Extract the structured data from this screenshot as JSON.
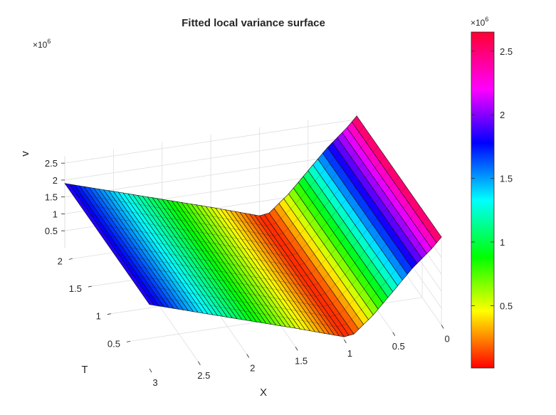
{
  "chart_data": {
    "type": "surface",
    "title": "Fitted local variance surface",
    "xlabel": "X",
    "ylabel": "T",
    "zlabel": "v",
    "xlim": [
      0,
      3
    ],
    "ylim": [
      0,
      2.2
    ],
    "zlim": [
      0,
      2.7
    ],
    "z_exponent_label": "×10",
    "z_exponent": "6",
    "x_ticks": [
      "0",
      "0.5",
      "1",
      "1.5",
      "2",
      "2.5",
      "3"
    ],
    "y_ticks": [
      "0.5",
      "1",
      "1.5",
      "2"
    ],
    "z_ticks": [
      "0.5",
      "1",
      "1.5",
      "2",
      "2.5"
    ],
    "colorbar": {
      "exponent_label": "×10",
      "exponent": "6",
      "ticks": [
        "0.5",
        "1",
        "1.5",
        "2",
        "2.5"
      ],
      "range": [
        0.01,
        2.65
      ],
      "colormap": "hsv"
    },
    "surface_profile": {
      "x": [
        3.0,
        2.5,
        2.0,
        1.5,
        1.0,
        0.9,
        0.7,
        0.5,
        0.3,
        0.1,
        0.0
      ],
      "v": [
        1.9,
        1.45,
        1.0,
        0.55,
        0.08,
        0.12,
        0.6,
        1.2,
        1.8,
        2.3,
        2.6
      ]
    }
  }
}
